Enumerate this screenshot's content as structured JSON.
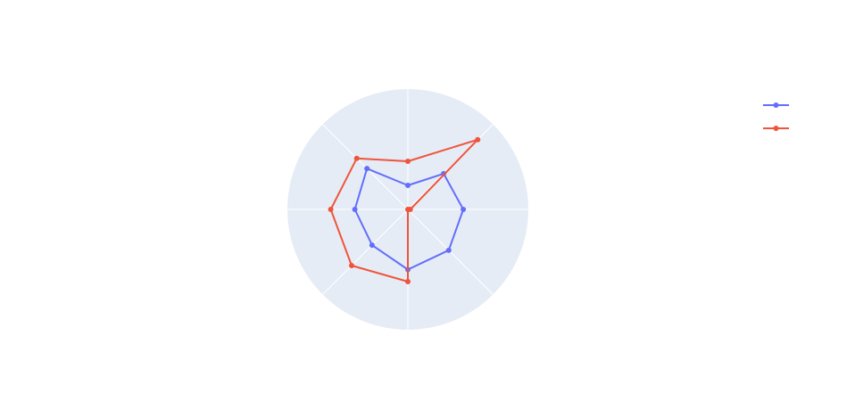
{
  "chart_data": {
    "type": "radar",
    "axes": [
      "",
      "",
      "",
      "",
      "",
      "",
      "",
      ""
    ],
    "radial_range": [
      0,
      5
    ],
    "grid": true,
    "background_color": "#e5ecf6",
    "grid_color": "#ffffff",
    "legend_position": "top-right",
    "series": [
      {
        "name": "",
        "color": "#636efa",
        "values": [
          2.3,
          2.1,
          1.0,
          2.4,
          2.2,
          2.1,
          2.5,
          2.4
        ]
      },
      {
        "name": "",
        "color": "#ef553b",
        "values": [
          0.1,
          4.1,
          2.0,
          3.0,
          3.2,
          3.3,
          3.0,
          0.0
        ]
      }
    ]
  }
}
